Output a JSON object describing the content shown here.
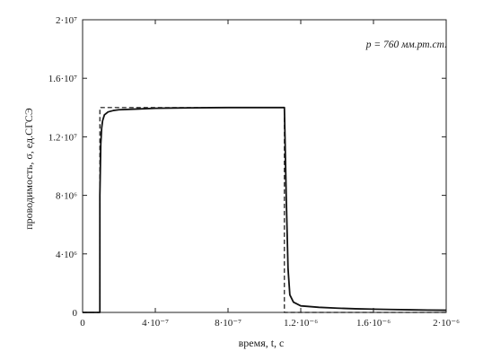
{
  "chart_data": {
    "type": "line",
    "xlabel": "время, t, с",
    "ylabel": "проводимость, σ, ед.СГСЭ",
    "annotation": "p = 760 мм.рт.ст.",
    "xlim": [
      0,
      2e-06
    ],
    "ylim": [
      0,
      20000000.0
    ],
    "x_ticks": [
      {
        "value": 0,
        "label": "0"
      },
      {
        "value": 4e-07,
        "label": "4·10⁻⁷"
      },
      {
        "value": 8e-07,
        "label": "8·10⁻⁷"
      },
      {
        "value": 1.2e-06,
        "label": "1.2·10⁻⁶"
      },
      {
        "value": 1.6e-06,
        "label": "1.6·10⁻⁶"
      },
      {
        "value": 2e-06,
        "label": "2·10⁻⁶"
      }
    ],
    "y_ticks": [
      {
        "value": 0,
        "label": "0"
      },
      {
        "value": 4000000.0,
        "label": "4·10⁶"
      },
      {
        "value": 8000000.0,
        "label": "8·10⁶"
      },
      {
        "value": 12000000.0,
        "label": "1.2·10⁷"
      },
      {
        "value": 16000000.0,
        "label": "1.6·10⁷"
      },
      {
        "value": 20000000.0,
        "label": "2·10⁷"
      }
    ],
    "grid": false,
    "series": [
      {
        "style": "solid",
        "color": "#111111",
        "x": [
          0,
          9.5e-08,
          9.5e-08,
          1e-07,
          1.05e-07,
          1.1e-07,
          1.2e-07,
          1.4e-07,
          1.7e-07,
          2e-07,
          3e-07,
          4e-07,
          5e-07,
          6e-07,
          7e-07,
          8e-07,
          9e-07,
          1e-06,
          1.08e-06,
          1.11e-06,
          1.12e-06,
          1.13e-06,
          1.14e-06,
          1.16e-06,
          1.2e-06,
          1.3e-06,
          1.4e-06,
          1.5e-06,
          1.6e-06,
          1.7e-06,
          1.8e-06,
          1.9e-06,
          2e-06
        ],
        "y": [
          0,
          0,
          8000000.0,
          11500000.0,
          12600000.0,
          13100000.0,
          13500000.0,
          13700000.0,
          13800000.0,
          13850000.0,
          13900000.0,
          13950000.0,
          13970000.0,
          13980000.0,
          13990000.0,
          14000000.0,
          14000000.0,
          14000000.0,
          14000000.0,
          14000000.0,
          8000000.0,
          3000000.0,
          1200000.0,
          700000.0,
          450000.0,
          350000.0,
          290000.0,
          250000.0,
          220000.0,
          200000.0,
          180000.0,
          160000.0,
          150000.0
        ]
      },
      {
        "style": "dashed",
        "color": "#111111",
        "x": [
          0,
          9.5e-08,
          9.5e-08,
          1.11e-06,
          1.11e-06,
          2e-06
        ],
        "y": [
          0,
          0,
          14000000.0,
          14000000.0,
          0,
          0
        ]
      }
    ]
  }
}
